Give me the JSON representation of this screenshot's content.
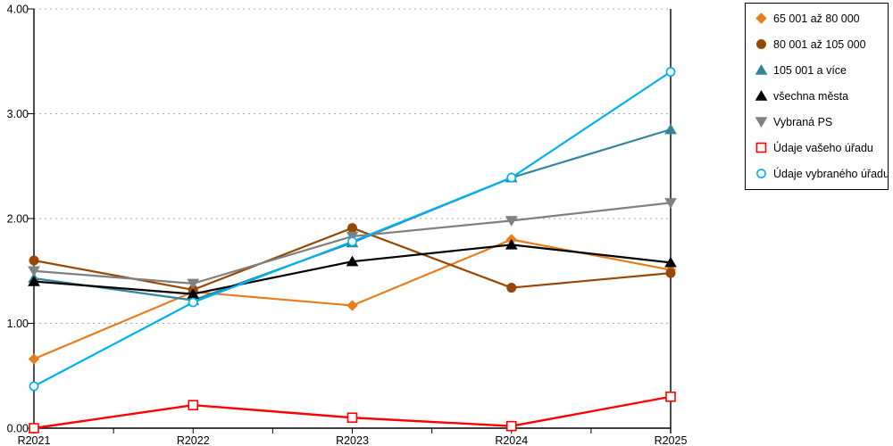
{
  "chart_data": {
    "type": "line",
    "title": "",
    "xlabel": "",
    "ylabel": "",
    "categories": [
      "R2021",
      "R2022",
      "R2023",
      "R2024",
      "R2025"
    ],
    "series": [
      {
        "name": "65 001 až 80 000",
        "color": "#E87D1E",
        "marker": "diamond",
        "marker_style": "solid",
        "values": [
          0.66,
          1.3,
          1.17,
          1.8,
          1.51
        ]
      },
      {
        "name": "80 001 až 105 000",
        "color": "#974807",
        "marker": "circle",
        "marker_style": "solid",
        "values": [
          1.6,
          1.32,
          1.91,
          1.34,
          1.48
        ]
      },
      {
        "name": "105 001 a více",
        "color": "#31859C",
        "marker": "triangle-up",
        "marker_style": "solid",
        "values": [
          1.43,
          1.22,
          1.77,
          2.39,
          2.85
        ]
      },
      {
        "name": "všechna města",
        "color": "#000000",
        "marker": "triangle-up",
        "marker_style": "solid",
        "values": [
          1.4,
          1.28,
          1.59,
          1.75,
          1.58
        ]
      },
      {
        "name": "Vybraná PS",
        "color": "#808080",
        "marker": "triangle-down",
        "marker_style": "solid",
        "values": [
          1.5,
          1.38,
          1.83,
          1.98,
          2.15
        ]
      },
      {
        "name": "Údaje vašeho úřadu",
        "color": "#FF0000",
        "marker": "square",
        "marker_style": "open",
        "values": [
          0.0,
          0.22,
          0.1,
          0.02,
          0.3
        ]
      },
      {
        "name": "Údaje vybraného úřadu",
        "color": "#00B0F0",
        "marker": "circle",
        "marker_style": "open",
        "values": [
          0.4,
          1.2,
          1.78,
          2.39,
          3.4
        ]
      }
    ],
    "ylim": [
      0,
      4
    ],
    "ytick_labels": [
      "0.00",
      "1.00",
      "2.00",
      "3.00",
      "4.00"
    ],
    "grid": "horizontal-dotted",
    "legend_position": "right",
    "background": "#FFFFFF",
    "axis_color": "#000000",
    "gridline_color": "#A6A6A6"
  }
}
